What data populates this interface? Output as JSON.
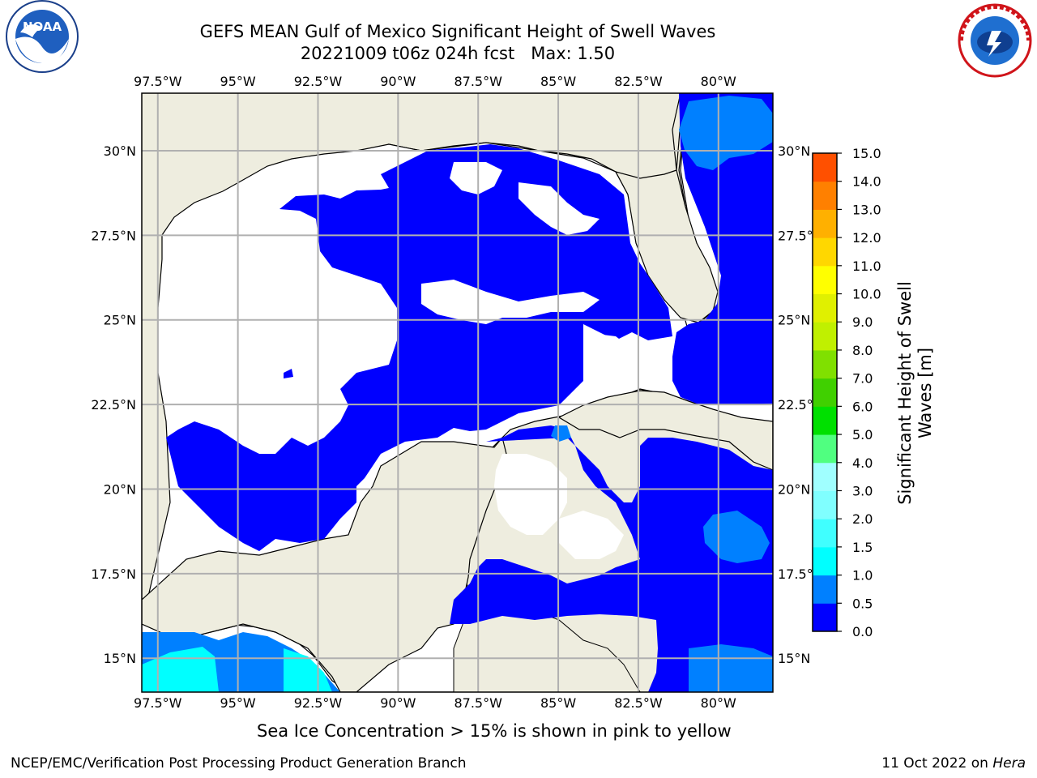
{
  "title": {
    "line1": "GEFS MEAN Gulf of Mexico Significant Height of Swell Waves",
    "line2": "20221009 t06z 024h fcst   Max: 1.50"
  },
  "logos": {
    "left": {
      "icon": "noaa-logo-icon",
      "text": "NOAA",
      "ring_text": "NATIONAL OCEANIC AND ATMOSPHERIC ADMINISTRATION · U.S. DEPARTMENT OF COMMERCE"
    },
    "right": {
      "icon": "nws-logo-icon",
      "ring_text": "NATIONAL WEATHER SERVICE"
    }
  },
  "map": {
    "projection": "PlateCarree",
    "lon_range": [
      -98.0,
      -78.3
    ],
    "lat_range": [
      14.0,
      31.7
    ],
    "lon_ticks": [
      "97.5°W",
      "95°W",
      "92.5°W",
      "90°W",
      "87.5°W",
      "85°W",
      "82.5°W",
      "80°W"
    ],
    "lon_tick_values": [
      -97.5,
      -95,
      -92.5,
      -90,
      -87.5,
      -85,
      -82.5,
      -80
    ],
    "lat_ticks_left": [
      "30°N",
      "27.5°N",
      "25°N",
      "22.5°N",
      "20°N",
      "17.5°N",
      "15°N"
    ],
    "lat_ticks_right": [
      "30°N",
      "27.5°N",
      "25°N",
      "22.5°N",
      "20°N",
      "17.5°N",
      "15°N"
    ],
    "lat_tick_values": [
      30,
      27.5,
      25,
      22.5,
      20,
      17.5,
      15
    ],
    "grid": true,
    "colors": {
      "land": "#eeeddf",
      "ocean_zero": "#ffffff",
      "grid": "#b0b0b0",
      "coast": "#000000"
    }
  },
  "colorbar": {
    "label": "Significant Height of Swell Waves [m]",
    "ticks": [
      "0.0",
      "0.5",
      "1.0",
      "1.5",
      "2.0",
      "3.0",
      "4.0",
      "5.0",
      "6.0",
      "7.0",
      "8.0",
      "9.0",
      "10.0",
      "11.0",
      "12.0",
      "13.0",
      "14.0",
      "15.0"
    ],
    "bin_colors": [
      "#0000ff",
      "#0080ff",
      "#00ffff",
      "#40ffff",
      "#80ffff",
      "#a0ffff",
      "#50ff80",
      "#00e000",
      "#40d000",
      "#80e000",
      "#c0f000",
      "#e0f000",
      "#ffff00",
      "#ffd700",
      "#ffb000",
      "#ff8000",
      "#ff5000",
      "#ff2000",
      "#ff0000"
    ],
    "placement": "right"
  },
  "note": "Sea Ice Concentration > 15% is shown in pink to yellow",
  "footer": {
    "left": "NCEP/EMC/Verification Post Processing Product Generation Branch",
    "right_date": "11 Oct 2022 on",
    "right_host": "Hera"
  }
}
